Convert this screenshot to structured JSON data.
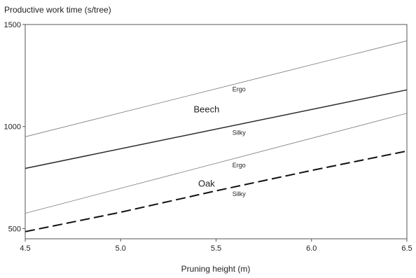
{
  "chart_data": {
    "type": "line",
    "title": "",
    "ylabel": "Productive work time (s/tree)",
    "xlabel": "Pruning height (m)",
    "xlim": [
      4.5,
      6.5
    ],
    "ylim": [
      450,
      1500
    ],
    "x_ticks": [
      "4.5",
      "5.0",
      "5.5",
      "6.0",
      "6.5"
    ],
    "y_ticks": [
      "500",
      "1000",
      "1500"
    ],
    "grid": false,
    "legend": "none",
    "series": [
      {
        "x": [
          4.5,
          6.5
        ],
        "values": [
          950,
          1420
        ],
        "style": "thin",
        "color": "#7a7a7a"
      },
      {
        "x": [
          4.5,
          6.5
        ],
        "values": [
          795,
          1180
        ],
        "style": "solid",
        "color": "#2a2a2a"
      },
      {
        "x": [
          4.5,
          6.5
        ],
        "values": [
          575,
          1065
        ],
        "style": "thin",
        "color": "#7a7a7a"
      },
      {
        "x": [
          4.5,
          5.0,
          5.5,
          6.0,
          6.5
        ],
        "values": [
          485,
          580,
          685,
          785,
          880
        ],
        "style": "dashed",
        "color": "#111111"
      }
    ],
    "annotations": [
      {
        "text": "Ergo",
        "x": 5.62,
        "y": 1172,
        "size": "small"
      },
      {
        "text": "Beech",
        "x": 5.45,
        "y": 1070,
        "size": "big"
      },
      {
        "text": "Silky",
        "x": 5.62,
        "y": 960,
        "size": "small"
      },
      {
        "text": "Ergo",
        "x": 5.62,
        "y": 800,
        "size": "small"
      },
      {
        "text": "Oak",
        "x": 5.45,
        "y": 705,
        "size": "big"
      },
      {
        "text": "Silky",
        "x": 5.62,
        "y": 660,
        "size": "small"
      }
    ]
  }
}
